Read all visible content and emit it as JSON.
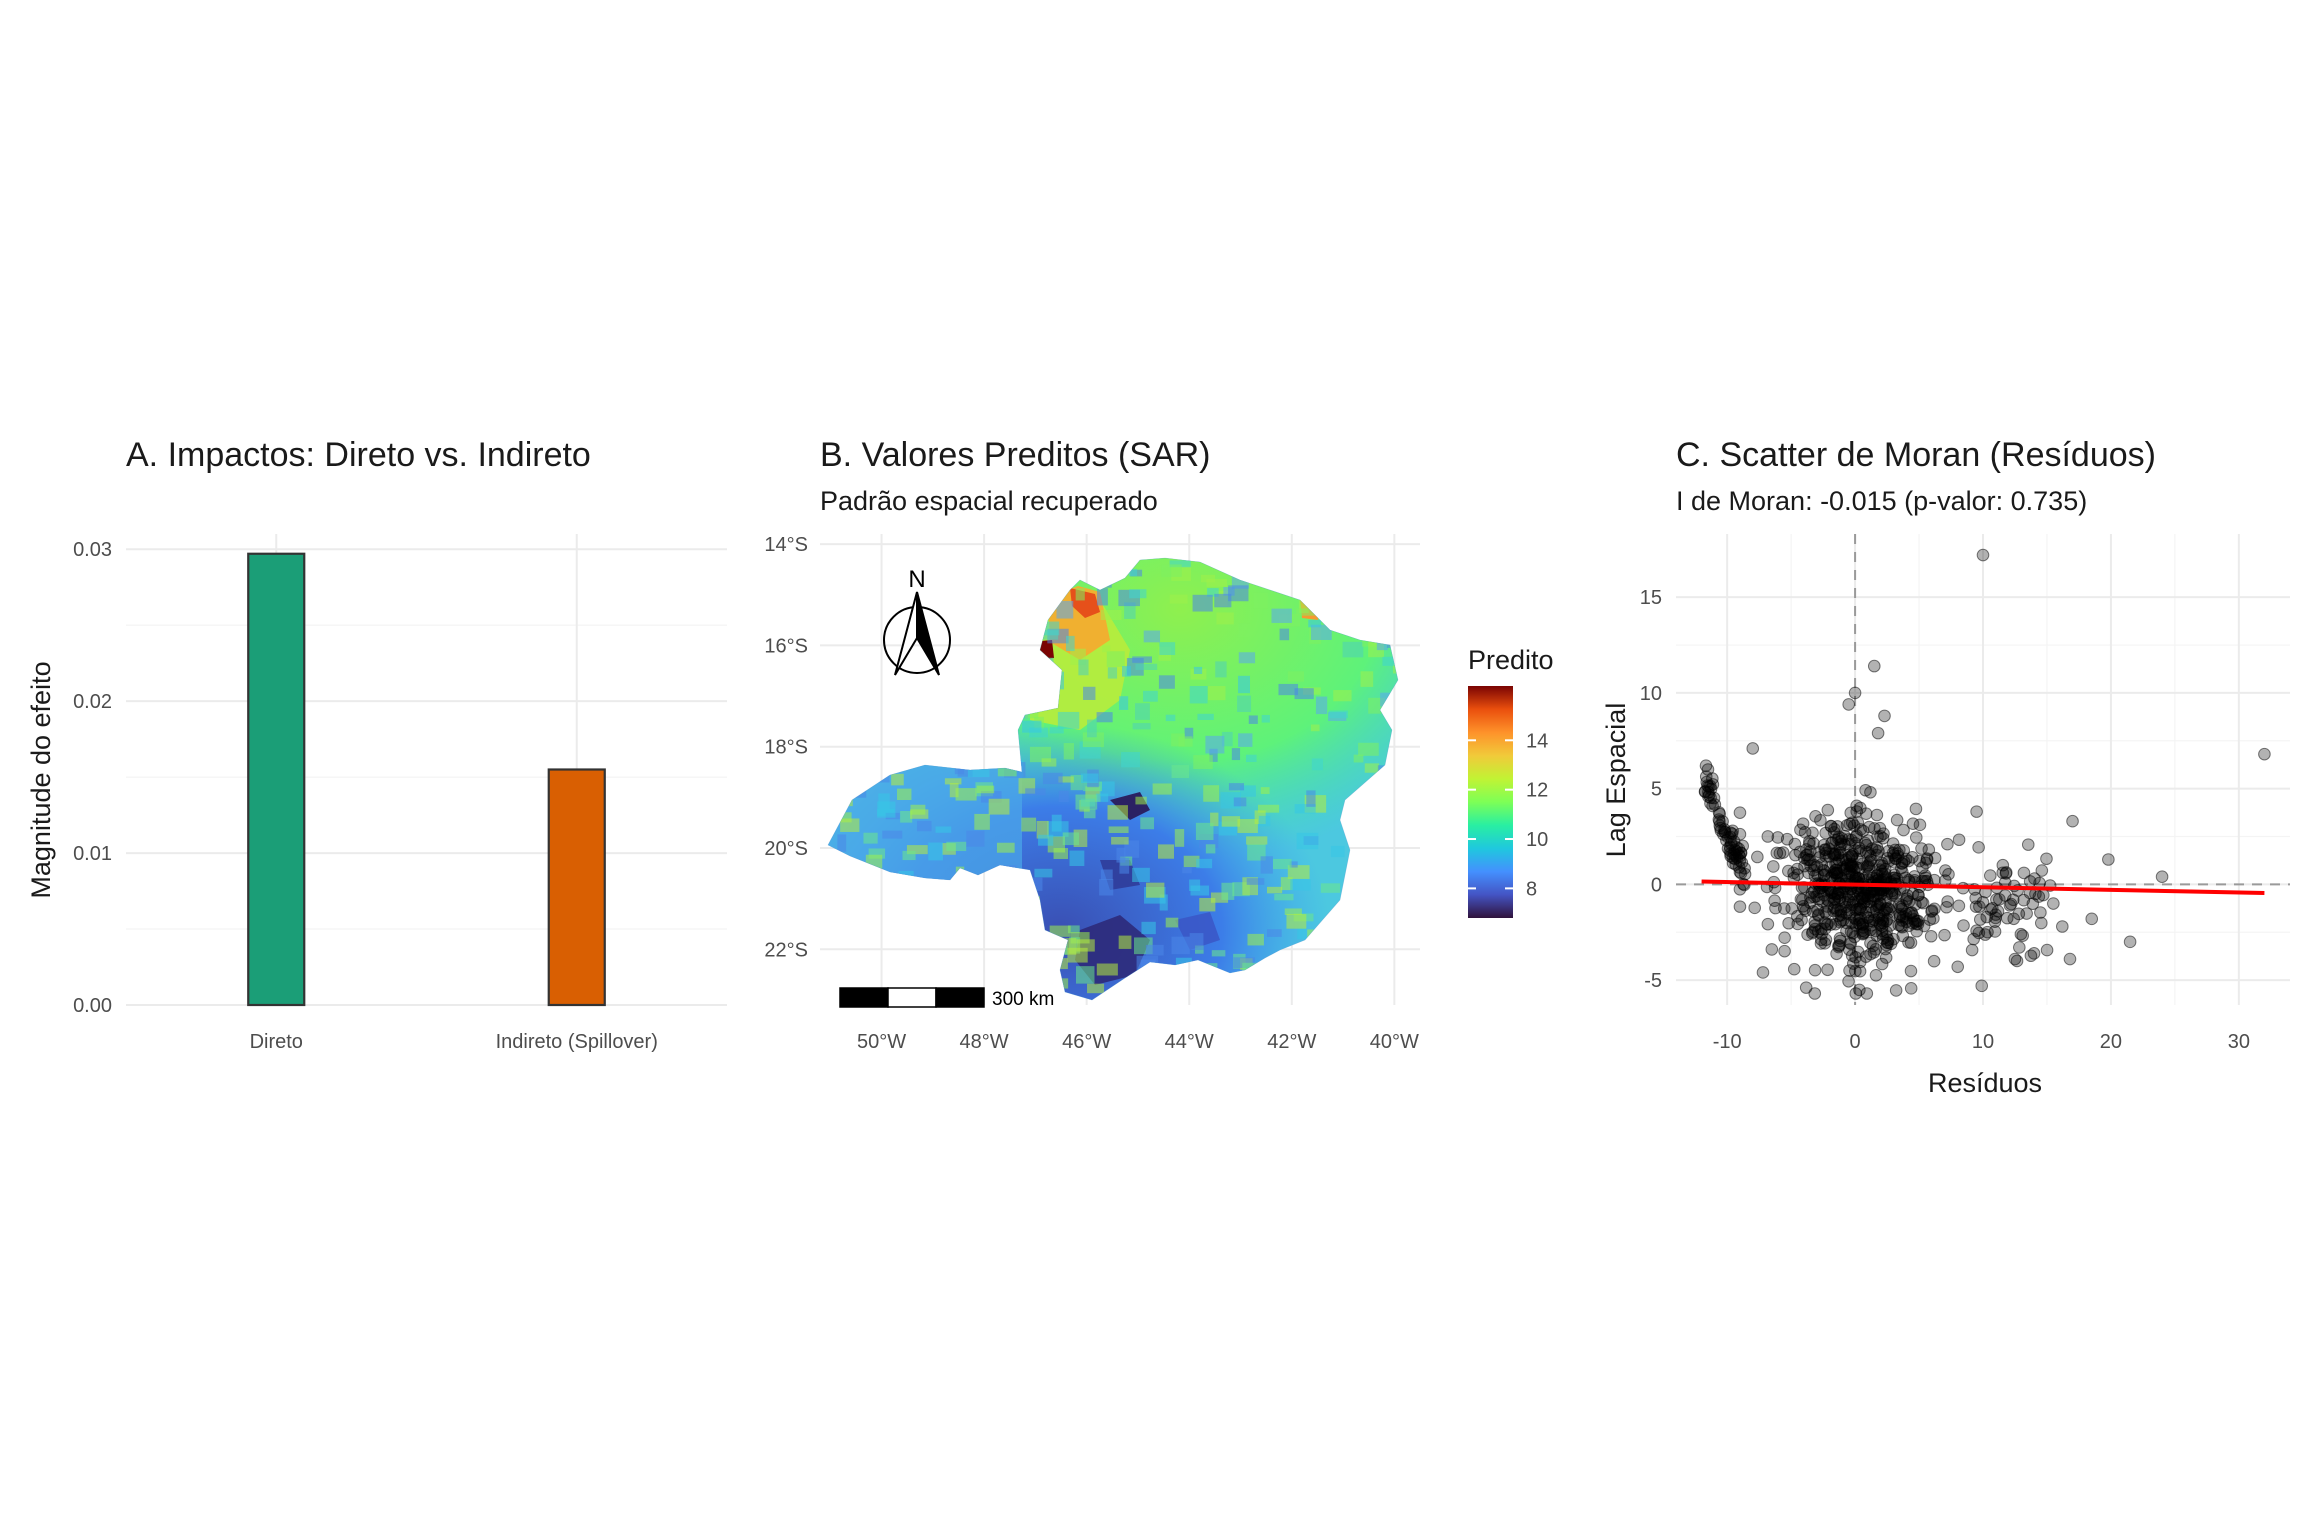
{
  "chart_data": [
    {
      "type": "bar",
      "title": "A. Impactos: Direto vs. Indireto",
      "xlabel": "",
      "ylabel": "Magnitude do efeito",
      "categories": [
        "Direto",
        "Indireto (Spillover)"
      ],
      "values": [
        0.0297,
        0.0155
      ],
      "colors": [
        "#1b9e77",
        "#d95f02"
      ],
      "ylim": [
        0,
        0.031
      ],
      "yticks": [
        0,
        0.01,
        0.02,
        0.03
      ],
      "ytick_labels": [
        "0.00",
        "0.01",
        "0.02",
        "0.03"
      ],
      "grid": true
    },
    {
      "type": "heatmap",
      "title": "B. Valores Preditos (SAR)",
      "subtitle": "Padrão espacial recuperado",
      "legend_title": "Predito",
      "legend_ticks": [
        8,
        10,
        12,
        14
      ],
      "value_range": [
        6.8,
        16.2
      ],
      "colormap": "turbo",
      "xlim": [
        -51.2,
        -39.5
      ],
      "ylim": [
        -23.1,
        -13.8
      ],
      "x_tick_values": [
        -50,
        -48,
        -46,
        -44,
        -42,
        -40
      ],
      "x_tick_labels": [
        "50°W",
        "48°W",
        "46°W",
        "44°W",
        "42°W",
        "40°W"
      ],
      "y_tick_values": [
        -14,
        -16,
        -18,
        -20,
        -22
      ],
      "y_tick_labels": [
        "14°S",
        "16°S",
        "18°S",
        "20°S",
        "22°S"
      ],
      "north_arrow_label": "N",
      "scale_bar_label": "300 km",
      "grid": true
    },
    {
      "type": "scatter",
      "title": "C. Scatter de Moran (Resíduos)",
      "subtitle": "I de Moran: -0.015 (p-valor: 0.735)",
      "xlabel": "Resíduos",
      "ylabel": "Lag Espacial",
      "xlim": [
        -14,
        34
      ],
      "ylim": [
        -6.3,
        18.3
      ],
      "xticks": [
        -10,
        0,
        10,
        20,
        30
      ],
      "yticks": [
        -5,
        0,
        5,
        10,
        15
      ],
      "regression_line": {
        "x": [
          -12,
          32
        ],
        "y": [
          0.15,
          -0.45
        ],
        "color": "#ff0000"
      },
      "outliers": [
        [
          10,
          17.2
        ],
        [
          32,
          6.8
        ],
        [
          -8,
          7.1
        ],
        [
          0,
          10
        ],
        [
          1.5,
          11.4
        ],
        [
          -0.5,
          9.4
        ],
        [
          2.3,
          8.8
        ],
        [
          1.8,
          7.9
        ],
        [
          24,
          0.4
        ],
        [
          21.5,
          -3.0
        ],
        [
          17,
          3.3
        ],
        [
          19.8,
          1.3
        ],
        [
          18.5,
          -1.8
        ],
        [
          16.2,
          -2.2
        ],
        [
          16.8,
          -3.9
        ],
        [
          15.5,
          -1.0
        ],
        [
          13.2,
          0.6
        ],
        [
          12.5,
          -3.9
        ],
        [
          9.5,
          3.8
        ],
        [
          9.9,
          -5.3
        ],
        [
          -11.5,
          6.0
        ],
        [
          -7.2,
          -4.6
        ],
        [
          14.1,
          -0.5
        ]
      ],
      "grid": true
    }
  ]
}
